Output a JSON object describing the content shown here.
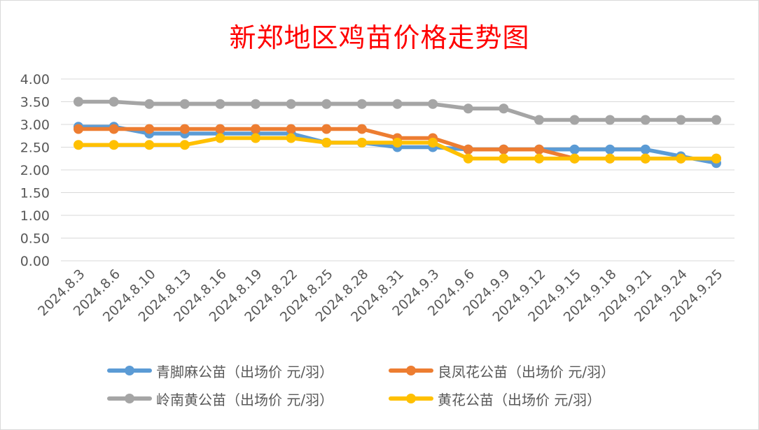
{
  "chart_data": {
    "type": "line",
    "title": "新郑地区鸡苗价格走势图",
    "xlabel": "",
    "ylabel": "",
    "ylim": [
      0,
      4
    ],
    "y_ticks": [
      "0.00",
      "0.50",
      "1.00",
      "1.50",
      "2.00",
      "2.50",
      "3.00",
      "3.50",
      "4.00"
    ],
    "grid": true,
    "legend_position": "bottom",
    "categories": [
      "2024.8.3",
      "2024.8.6",
      "2024.8.10",
      "2024.8.13",
      "2024.8.16",
      "2024.8.19",
      "2024.8.22",
      "2024.8.25",
      "2024.8.28",
      "2024.8.31",
      "2024.9.3",
      "2024.9.6",
      "2024.9.9",
      "2024.9.12",
      "2024.9.15",
      "2024.9.18",
      "2024.9.21",
      "2024.9.24",
      "2024.9.25"
    ],
    "series": [
      {
        "name": "青脚麻公苗（出场价 元/羽）",
        "color": "#5b9bd5",
        "values": [
          2.95,
          2.95,
          2.8,
          2.8,
          2.8,
          2.8,
          2.8,
          2.6,
          2.6,
          2.5,
          2.5,
          2.45,
          2.45,
          2.45,
          2.45,
          2.45,
          2.45,
          2.3,
          2.15
        ]
      },
      {
        "name": "良凤花公苗（出场价 元/羽）",
        "color": "#ed7d31",
        "values": [
          2.9,
          2.9,
          2.9,
          2.9,
          2.9,
          2.9,
          2.9,
          2.9,
          2.9,
          2.7,
          2.7,
          2.45,
          2.45,
          2.45,
          2.25,
          2.25,
          2.25,
          2.25,
          2.25
        ]
      },
      {
        "name": "岭南黄公苗（出场价 元/羽）",
        "color": "#a5a5a5",
        "values": [
          3.5,
          3.5,
          3.45,
          3.45,
          3.45,
          3.45,
          3.45,
          3.45,
          3.45,
          3.45,
          3.45,
          3.35,
          3.35,
          3.1,
          3.1,
          3.1,
          3.1,
          3.1,
          3.1
        ]
      },
      {
        "name": "黄花公苗（出场价 元/羽）",
        "color": "#ffc000",
        "values": [
          2.55,
          2.55,
          2.55,
          2.55,
          2.7,
          2.7,
          2.7,
          2.6,
          2.6,
          2.6,
          2.6,
          2.25,
          2.25,
          2.25,
          2.25,
          2.25,
          2.25,
          2.25,
          2.25
        ]
      }
    ]
  }
}
